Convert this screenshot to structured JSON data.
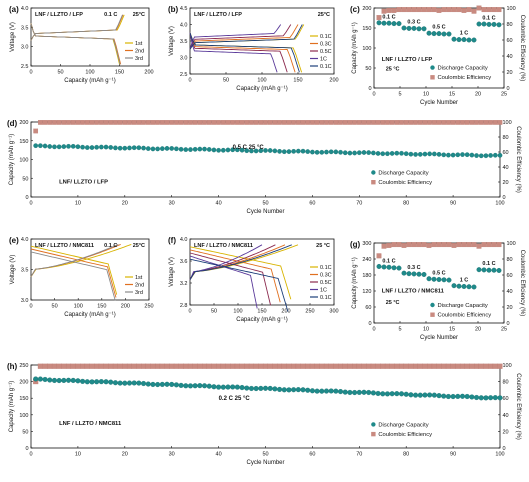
{
  "panels": [
    {
      "key": "a",
      "letter": "(a)",
      "label": "LNF / LLZTO / LFP",
      "rate": "0.1 C",
      "temp": "25°C",
      "xlabel": "Capacity (mAh g⁻¹)",
      "ylabel": "Voltage (V)",
      "xticks": [
        "0",
        "50",
        "100",
        "150",
        "200"
      ],
      "yticks": [
        "2.5",
        "3.0",
        "3.5",
        "4.0"
      ],
      "legend": [
        "1st",
        "2nd",
        "3rd"
      ]
    },
    {
      "key": "b",
      "letter": "(b)",
      "label": "LNF / LLZTO / LFP",
      "temp": "25°C",
      "xlabel": "Capacity (mAh g⁻¹)",
      "ylabel": "Voltage (V)",
      "xticks": [
        "0",
        "50",
        "100",
        "150",
        "200"
      ],
      "yticks": [
        "2.5",
        "3.0",
        "3.5",
        "4.0",
        "4.5"
      ],
      "legend": [
        "0.1C",
        "0.3C",
        "0.5C",
        "1C",
        "0.1C"
      ]
    },
    {
      "key": "c",
      "letter": "(c)",
      "label": "LNF / LLZTO / LFP",
      "temp": "25 °C",
      "xlabel": "Cycle Number",
      "ylabel": "Capacity (mAh g⁻¹)",
      "y2label": "Coulombic Efficiency (%)",
      "xticks": [
        "0",
        "5",
        "10",
        "15",
        "20",
        "25"
      ],
      "yticks": [
        "0",
        "50",
        "100",
        "150",
        "200"
      ],
      "y2ticks": [
        "0",
        "20",
        "40",
        "60",
        "80",
        "100"
      ],
      "rates": [
        "0.1 C",
        "0.3 C",
        "0.5 C",
        "1 C",
        "0.1 C"
      ],
      "legend": [
        "Discharge Capacity",
        "Coulombic Efficiency"
      ]
    },
    {
      "key": "d",
      "letter": "(d)",
      "label": "LNF/ LLZTO / LFP",
      "rate": "0.5 C  25 °C",
      "xlabel": "Cycle Number",
      "ylabel": "Capacity (mAh g⁻¹)",
      "y2label": "Coulombic Efficiency (%)",
      "xticks": [
        "0",
        "10",
        "20",
        "30",
        "40",
        "50",
        "60",
        "70",
        "80",
        "90",
        "100"
      ],
      "yticks": [
        "0",
        "50",
        "100",
        "150",
        "200"
      ],
      "y2ticks": [
        "0",
        "20",
        "40",
        "60",
        "80",
        "100"
      ],
      "legend": [
        "Discharge Capacity",
        "Coulombic Efficiency"
      ]
    },
    {
      "key": "e",
      "letter": "(e)",
      "label": "LNF / LLZTO / NMC811",
      "rate": "0.1 C",
      "temp": "25°C",
      "xlabel": "Capacity (mAh g⁻¹)",
      "ylabel": "Voltage (V)",
      "xticks": [
        "0",
        "50",
        "100",
        "150",
        "200",
        "250"
      ],
      "yticks": [
        "3.0",
        "3.5",
        "4.0"
      ],
      "legend": [
        "1st",
        "2nd",
        "3rd"
      ]
    },
    {
      "key": "f",
      "letter": "(f)",
      "label": "LNF / LLZTO / NMC811",
      "temp": "25 °C",
      "xlabel": "Capacity (mAh g⁻¹)",
      "ylabel": "Voltage (V)",
      "xticks": [
        "0",
        "50",
        "100",
        "150",
        "200",
        "250",
        "300"
      ],
      "yticks": [
        "2.8",
        "3.2",
        "3.6",
        "4.0"
      ],
      "legend": [
        "0.1C",
        "0.3C",
        "0.5C",
        "1C",
        "0.1C"
      ]
    },
    {
      "key": "g",
      "letter": "(g)",
      "label": "LNF / LLZTO / NMC811",
      "temp": "25 °C",
      "xlabel": "Cycle Number",
      "ylabel": "Capacity (mAh g⁻¹)",
      "y2label": "Coulombic Efficiency (%)",
      "xticks": [
        "0",
        "5",
        "10",
        "15",
        "20",
        "25"
      ],
      "yticks": [
        "0",
        "60",
        "120",
        "180",
        "240",
        "300"
      ],
      "y2ticks": [
        "0",
        "20",
        "40",
        "60",
        "80",
        "100"
      ],
      "rates": [
        "0.1 C",
        "0.3 C",
        "0.5 C",
        "1 C",
        "0.1 C"
      ],
      "legend": [
        "Discharge Capacity",
        "Coulombic Efficiency"
      ]
    },
    {
      "key": "h",
      "letter": "(h)",
      "label": "LNF / LLZTO / NMC811",
      "rate": "0.2 C  25 °C",
      "xlabel": "Cycle Number",
      "ylabel": "Capacity (mAh g⁻¹)",
      "y2label": "Coulombic Efficiency (%)",
      "xticks": [
        "0",
        "10",
        "20",
        "30",
        "40",
        "50",
        "60",
        "70",
        "80",
        "90",
        "100"
      ],
      "yticks": [
        "0",
        "50",
        "100",
        "150",
        "200",
        "250"
      ],
      "y2ticks": [
        "0",
        "20",
        "40",
        "60",
        "80",
        "100"
      ],
      "legend": [
        "Discharge Capacity",
        "Coulombic Efficiency"
      ]
    }
  ],
  "colors": {
    "teal": "#1f8a8a",
    "pink": "#c98a80",
    "yellow": "#d8b400",
    "orange": "#e07020",
    "maroon": "#8b2a4e",
    "purple": "#5a3a9a",
    "darkblue": "#1d3f7a",
    "gray": "#8a8a8a",
    "black": "#111111"
  },
  "chart_data": [
    {
      "panel": "a",
      "type": "line",
      "xlim": [
        0,
        200
      ],
      "ylim": [
        2.5,
        4.2
      ],
      "series": [
        {
          "name": "1st",
          "charge_capacity": 158,
          "discharge_capacity": 150,
          "charge_plateau": 3.45,
          "discharge_plateau": 3.38
        },
        {
          "name": "2nd",
          "charge_capacity": 156,
          "discharge_capacity": 152,
          "charge_plateau": 3.45,
          "discharge_plateau": 3.38
        },
        {
          "name": "3rd",
          "charge_capacity": 155,
          "discharge_capacity": 151,
          "charge_plateau": 3.45,
          "discharge_plateau": 3.38
        }
      ]
    },
    {
      "panel": "b",
      "type": "line",
      "xlim": [
        0,
        200
      ],
      "ylim": [
        2.5,
        4.5
      ],
      "series": [
        {
          "name": "0.1C",
          "charge_capacity": 158,
          "discharge_capacity": 155,
          "charge_plateau": 3.45,
          "discharge_plateau": 3.38
        },
        {
          "name": "0.3C",
          "charge_capacity": 150,
          "discharge_capacity": 146,
          "charge_plateau": 3.5,
          "discharge_plateau": 3.33
        },
        {
          "name": "0.5C",
          "charge_capacity": 140,
          "discharge_capacity": 135,
          "charge_plateau": 3.55,
          "discharge_plateau": 3.28
        },
        {
          "name": "1C",
          "charge_capacity": 126,
          "discharge_capacity": 121,
          "charge_plateau": 3.62,
          "discharge_plateau": 3.2
        },
        {
          "name": "0.1C",
          "charge_capacity": 156,
          "discharge_capacity": 152,
          "charge_plateau": 3.45,
          "discharge_plateau": 3.38
        }
      ]
    },
    {
      "panel": "c",
      "type": "scatter",
      "xlim": [
        0,
        26
      ],
      "ylim": [
        0,
        200
      ],
      "y2lim": [
        0,
        100
      ],
      "series": [
        {
          "name": "Discharge Capacity",
          "axis": "left",
          "x": [
            1,
            2,
            3,
            4,
            5,
            6,
            7,
            8,
            9,
            10,
            11,
            12,
            13,
            14,
            15,
            16,
            17,
            18,
            19,
            20,
            21,
            22,
            23,
            24,
            25
          ],
          "values": [
            163,
            162,
            162,
            161,
            161,
            150,
            149,
            149,
            148,
            148,
            137,
            136,
            136,
            135,
            135,
            122,
            121,
            121,
            120,
            120,
            160,
            160,
            159,
            159,
            158
          ]
        },
        {
          "name": "Coulombic Efficiency",
          "axis": "right",
          "x": [
            1,
            2,
            3,
            4,
            5,
            6,
            7,
            8,
            9,
            10,
            11,
            12,
            13,
            14,
            15,
            16,
            17,
            18,
            19,
            20,
            21,
            22,
            23,
            24,
            25
          ],
          "values": [
            88,
            96,
            97,
            97,
            98,
            98,
            98,
            98,
            98,
            98,
            98,
            98,
            97,
            98,
            98,
            98,
            98,
            97,
            98,
            96,
            100,
            98,
            98,
            98,
            98
          ]
        }
      ]
    },
    {
      "panel": "d",
      "type": "scatter",
      "xlim": [
        0,
        100
      ],
      "ylim": [
        0,
        200
      ],
      "y2lim": [
        0,
        100
      ],
      "series": [
        {
          "name": "Discharge Capacity",
          "axis": "left",
          "start": 136,
          "end": 110,
          "count": 100
        },
        {
          "name": "Coulombic Efficiency",
          "axis": "right",
          "first": 88,
          "steady": 99.5,
          "count": 100
        }
      ]
    },
    {
      "panel": "e",
      "type": "line",
      "xlim": [
        0,
        300
      ],
      "ylim": [
        2.7,
        4.4
      ],
      "series": [
        {
          "name": "1st",
          "charge_capacity": 255,
          "discharge_capacity": 218
        },
        {
          "name": "2nd",
          "charge_capacity": 228,
          "discharge_capacity": 216
        },
        {
          "name": "3rd",
          "charge_capacity": 222,
          "discharge_capacity": 214
        }
      ]
    },
    {
      "panel": "f",
      "type": "line",
      "xlim": [
        0,
        300
      ],
      "ylim": [
        2.7,
        4.4
      ],
      "series": [
        {
          "name": "0.1C",
          "charge_capacity": 225,
          "discharge_capacity": 210
        },
        {
          "name": "0.3C",
          "charge_capacity": 198,
          "discharge_capacity": 188
        },
        {
          "name": "0.5C",
          "charge_capacity": 178,
          "discharge_capacity": 168
        },
        {
          "name": "1C",
          "charge_capacity": 150,
          "discharge_capacity": 140
        },
        {
          "name": "0.1C",
          "charge_capacity": 212,
          "discharge_capacity": 204
        }
      ]
    },
    {
      "panel": "g",
      "type": "scatter",
      "xlim": [
        0,
        26
      ],
      "ylim": [
        0,
        300
      ],
      "y2lim": [
        0,
        100
      ],
      "series": [
        {
          "name": "Discharge Capacity",
          "axis": "left",
          "x": [
            1,
            2,
            3,
            4,
            5,
            6,
            7,
            8,
            9,
            10,
            11,
            12,
            13,
            14,
            15,
            16,
            17,
            18,
            19,
            20,
            21,
            22,
            23,
            24,
            25
          ],
          "values": [
            212,
            210,
            209,
            207,
            206,
            187,
            185,
            184,
            183,
            182,
            166,
            164,
            163,
            162,
            161,
            140,
            138,
            137,
            136,
            135,
            200,
            199,
            198,
            198,
            197
          ]
        },
        {
          "name": "Coulombic Efficiency",
          "axis": "right",
          "x": [
            1,
            2,
            3,
            4,
            5,
            6,
            7,
            8,
            9,
            10,
            11,
            12,
            13,
            14,
            15,
            16,
            17,
            18,
            19,
            20,
            21,
            22,
            23,
            24,
            25
          ],
          "values": [
            84,
            96,
            97,
            98,
            98,
            97,
            98,
            98,
            98,
            98,
            97,
            98,
            98,
            98,
            98,
            97,
            98,
            98,
            98,
            98,
            96,
            98,
            98,
            98,
            98
          ]
        }
      ]
    },
    {
      "panel": "h",
      "type": "scatter",
      "xlim": [
        0,
        100
      ],
      "ylim": [
        0,
        250
      ],
      "y2lim": [
        0,
        100
      ],
      "series": [
        {
          "name": "Discharge Capacity",
          "axis": "left",
          "start": 207,
          "end": 150,
          "count": 100
        },
        {
          "name": "Coulombic Efficiency",
          "axis": "right",
          "first": 80,
          "steady": 98.5,
          "count": 100
        }
      ]
    }
  ]
}
